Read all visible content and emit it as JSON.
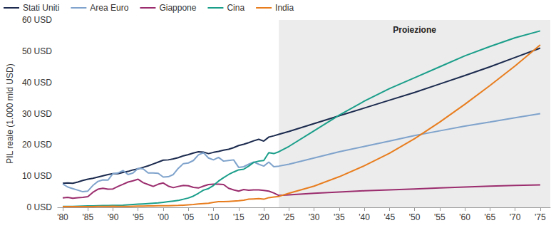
{
  "chart_data": {
    "type": "line",
    "y_label": "PIL reale (1.000 mld USD)",
    "legend": "top-left",
    "grid": false,
    "x": [
      1980,
      1981,
      1982,
      1983,
      1984,
      1985,
      1986,
      1987,
      1988,
      1989,
      1990,
      1991,
      1992,
      1993,
      1994,
      1995,
      1996,
      1997,
      1998,
      1999,
      2000,
      2001,
      2002,
      2003,
      2004,
      2005,
      2006,
      2007,
      2008,
      2009,
      2010,
      2011,
      2012,
      2013,
      2014,
      2015,
      2016,
      2017,
      2018,
      2019,
      2020,
      2021,
      2022,
      2023,
      2025,
      2030,
      2035,
      2040,
      2045,
      2050,
      2055,
      2060,
      2065,
      2070,
      2075
    ],
    "series": [
      {
        "name": "Stati Uniti",
        "color": "#1b2a4e",
        "values": [
          7.7,
          7.8,
          7.7,
          8.1,
          8.6,
          9.0,
          9.3,
          9.7,
          10.1,
          10.5,
          10.8,
          10.8,
          11.2,
          11.5,
          12.0,
          12.3,
          12.8,
          13.3,
          13.9,
          14.5,
          15.1,
          15.2,
          15.5,
          15.9,
          16.5,
          16.9,
          17.4,
          17.8,
          17.7,
          17.2,
          17.6,
          17.9,
          18.3,
          18.6,
          19.1,
          19.8,
          20.2,
          20.7,
          21.3,
          21.8,
          21.2,
          22.5,
          22.9,
          23.4,
          24.3,
          26.8,
          29.3,
          31.8,
          34.3,
          36.8,
          39.5,
          42.2,
          45,
          48,
          51
        ]
      },
      {
        "name": "Area Euro",
        "color": "#7fa3cc",
        "values": [
          7.5,
          6.5,
          6,
          5.5,
          5,
          5.2,
          7,
          8.3,
          8.8,
          8.7,
          10.8,
          11,
          11.8,
          10.5,
          11,
          12.5,
          12.3,
          11,
          11,
          10.9,
          9.7,
          9.8,
          10.5,
          12.5,
          14,
          14.2,
          15,
          16.8,
          17.5,
          15.8,
          15.2,
          16,
          14.8,
          15,
          15.2,
          12.8,
          13,
          13.8,
          14.5,
          13.8,
          13.2,
          14.5,
          13,
          13.2,
          13.8,
          15.8,
          17.8,
          19.5,
          21.2,
          23,
          24.5,
          26,
          27.3,
          28.7,
          30
        ]
      },
      {
        "name": "Giappone",
        "color": "#9b2d6e",
        "values": [
          3,
          3.2,
          2.9,
          3.1,
          3.2,
          3.4,
          4.8,
          5.8,
          6.1,
          5.8,
          5.9,
          6.7,
          7.4,
          8.1,
          8.5,
          9,
          7.9,
          7.3,
          6.7,
          7.4,
          7.8,
          6.8,
          6.3,
          6.7,
          7,
          6.9,
          6.4,
          6.2,
          6.8,
          7.3,
          7.4,
          7.4,
          7.3,
          6.1,
          5.6,
          5.2,
          5.7,
          5.5,
          5.6,
          5.6,
          5.4,
          5.2,
          4.6,
          3.8,
          4,
          4.5,
          4.9,
          5.3,
          5.6,
          5.9,
          6.2,
          6.5,
          6.8,
          7,
          7.2
        ]
      },
      {
        "name": "Cina",
        "color": "#1a9e8a",
        "values": [
          0.3,
          0.3,
          0.3,
          0.35,
          0.4,
          0.45,
          0.45,
          0.5,
          0.55,
          0.55,
          0.6,
          0.65,
          0.7,
          0.8,
          0.9,
          1.0,
          1.1,
          1.2,
          1.3,
          1.4,
          1.6,
          1.8,
          2.0,
          2.2,
          2.6,
          3.0,
          3.6,
          4.5,
          5.5,
          6.0,
          7.0,
          8.4,
          9.5,
          10.5,
          11.3,
          12.0,
          12.2,
          13.2,
          14.4,
          14.8,
          15.0,
          17.5,
          17.2,
          17.8,
          19.5,
          24.5,
          29.5,
          34,
          38,
          41.5,
          45,
          48.5,
          51.5,
          54.3,
          56.5
        ]
      },
      {
        "name": "India",
        "color": "#e87d1e",
        "values": [
          0.2,
          0.2,
          0.2,
          0.2,
          0.2,
          0.25,
          0.25,
          0.3,
          0.3,
          0.3,
          0.35,
          0.3,
          0.3,
          0.3,
          0.35,
          0.4,
          0.4,
          0.45,
          0.45,
          0.5,
          0.5,
          0.5,
          0.55,
          0.6,
          0.7,
          0.8,
          0.9,
          1.1,
          1.2,
          1.3,
          1.6,
          1.8,
          1.8,
          1.9,
          2.0,
          2.1,
          2.3,
          2.6,
          2.7,
          2.8,
          2.6,
          3.1,
          3.3,
          3.5,
          4.5,
          6.8,
          9.8,
          13.3,
          17.3,
          22,
          27.3,
          33,
          39,
          45.3,
          52
        ]
      }
    ],
    "xlim": [
      1979,
      2077
    ],
    "xticks": [
      {
        "value": 1980,
        "label": "'80"
      },
      {
        "value": 1985,
        "label": "'85"
      },
      {
        "value": 1990,
        "label": "'90"
      },
      {
        "value": 1995,
        "label": "'95"
      },
      {
        "value": 2000,
        "label": "'00"
      },
      {
        "value": 2005,
        "label": "'05"
      },
      {
        "value": 2010,
        "label": "'10"
      },
      {
        "value": 2015,
        "label": "'15"
      },
      {
        "value": 2020,
        "label": "'20"
      },
      {
        "value": 2025,
        "label": "'25"
      },
      {
        "value": 2030,
        "label": "'30"
      },
      {
        "value": 2035,
        "label": "'35"
      },
      {
        "value": 2040,
        "label": "'40"
      },
      {
        "value": 2045,
        "label": "'45"
      },
      {
        "value": 2050,
        "label": "'50"
      },
      {
        "value": 2055,
        "label": "'55"
      },
      {
        "value": 2060,
        "label": "'60"
      },
      {
        "value": 2065,
        "label": "'65"
      },
      {
        "value": 2070,
        "label": "'70"
      },
      {
        "value": 2075,
        "label": "'75"
      }
    ],
    "ylim": [
      0,
      60
    ],
    "yticks": [
      {
        "value": 0,
        "label": "0 USD"
      },
      {
        "value": 10,
        "label": "10 USD"
      },
      {
        "value": 20,
        "label": "20 USD"
      },
      {
        "value": 30,
        "label": "30 USD"
      },
      {
        "value": 40,
        "label": "40 USD"
      },
      {
        "value": 50,
        "label": "50 USD"
      },
      {
        "value": 60,
        "label": "60 USD"
      }
    ],
    "annotations": [
      {
        "text": "Proiezione",
        "x_start": 2023,
        "x_end": 2077
      }
    ]
  }
}
